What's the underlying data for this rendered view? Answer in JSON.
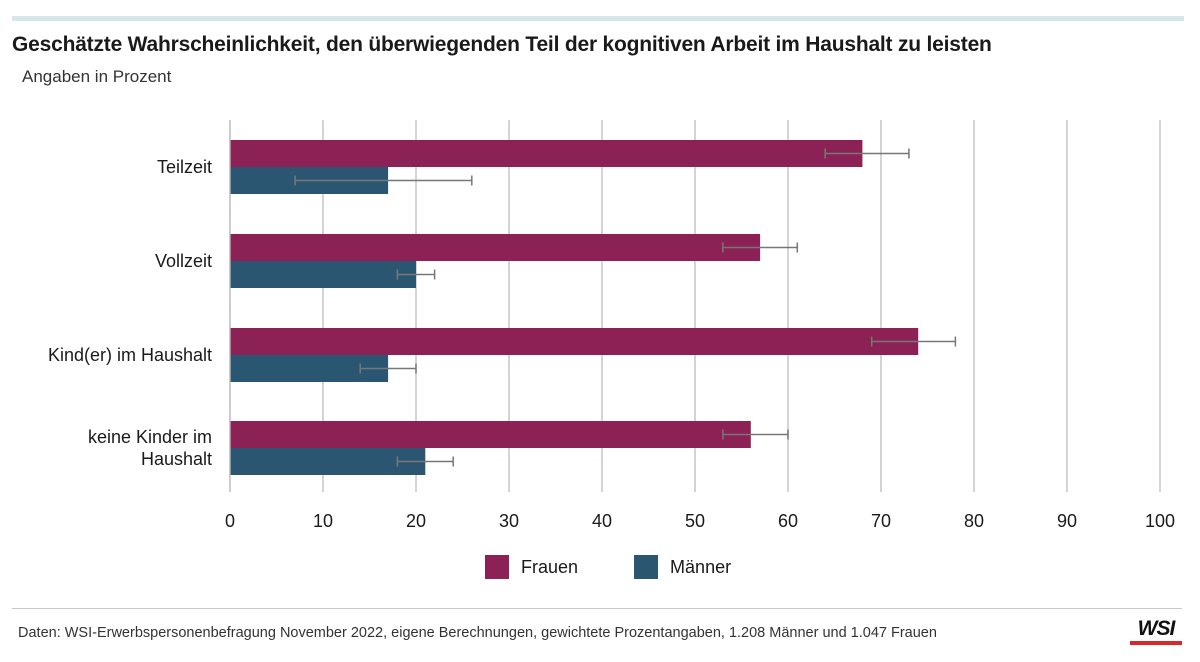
{
  "header": {
    "title": "Geschätzte Wahrscheinlichkeit, den überwiegenden Teil der kognitiven Arbeit im Haushalt zu leisten",
    "subtitle": "Angaben in Prozent"
  },
  "footer": {
    "source": "Daten: WSI-Erwerbspersonenbefragung November 2022, eigene Berechnungen, gewichtete Prozentangaben, 1.208 Männer und 1.047 Frauen",
    "logo": "WSI"
  },
  "colors": {
    "frauen": "#8c2155",
    "maenner": "#2b5672",
    "grid": "#bdbdbd",
    "errorbar": "#777777",
    "logo_accent": "#d8282b"
  },
  "chart_data": {
    "type": "bar",
    "orientation": "horizontal",
    "title": "Geschätzte Wahrscheinlichkeit, den überwiegenden Teil der kognitiven Arbeit im Haushalt zu leisten",
    "subtitle": "Angaben in Prozent",
    "categories": [
      [
        "Teilzeit"
      ],
      [
        "Vollzeit"
      ],
      [
        "Kind(er) im Haushalt"
      ],
      [
        "keine Kinder im",
        "Haushalt"
      ]
    ],
    "series": [
      {
        "name": "Frauen",
        "color": "#8c2155",
        "values": [
          68,
          57,
          74,
          56
        ],
        "err_low": [
          64,
          53,
          69,
          53
        ],
        "err_high": [
          73,
          61,
          78,
          60
        ]
      },
      {
        "name": "Männer",
        "color": "#2b5672",
        "values": [
          17,
          20,
          17,
          21
        ],
        "err_low": [
          7,
          18,
          14,
          18
        ],
        "err_high": [
          26,
          22,
          20,
          24
        ]
      }
    ],
    "xlim": [
      0,
      100
    ],
    "xticks": [
      0,
      10,
      20,
      30,
      40,
      50,
      60,
      70,
      80,
      90,
      100
    ],
    "grid": true,
    "legend_position": "bottom"
  }
}
